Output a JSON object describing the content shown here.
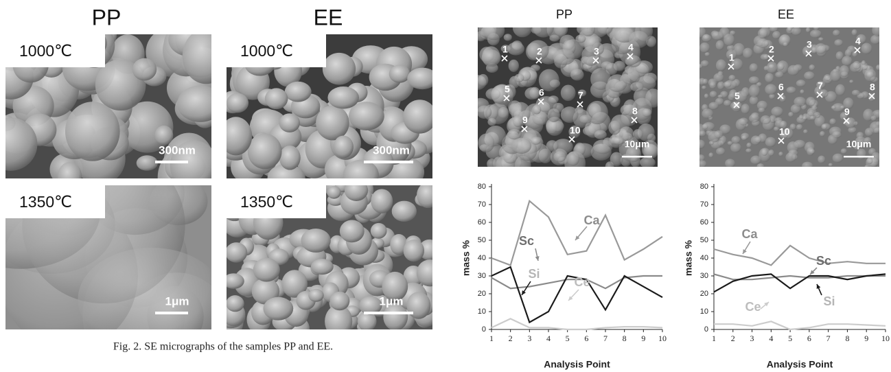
{
  "left": {
    "columns": [
      "PP",
      "EE"
    ],
    "rows": [
      "1000℃",
      "1350℃"
    ],
    "scale_bars": [
      "300nm",
      "300nm",
      "1μm",
      "1μm"
    ],
    "caption": "Fig. 2.    SE micrographs of the samples PP and EE."
  },
  "right": {
    "micrographs": [
      {
        "title": "PP",
        "points": [
          "1",
          "2",
          "3",
          "4",
          "5",
          "6",
          "7",
          "8",
          "9",
          "10"
        ],
        "scale_bar": "10μm"
      },
      {
        "title": "EE",
        "points": [
          "1",
          "2",
          "3",
          "4",
          "5",
          "6",
          "7",
          "8",
          "9",
          "10"
        ],
        "scale_bar": "10μm"
      }
    ]
  },
  "chart_data": [
    {
      "type": "line",
      "y_label": "mass %",
      "x_label": "Analysis Point",
      "x": [
        1,
        2,
        3,
        4,
        5,
        6,
        7,
        8,
        9,
        10
      ],
      "xlim": [
        1,
        10
      ],
      "xticks": [
        1,
        2,
        3,
        4,
        5,
        6,
        7,
        8,
        9,
        10
      ],
      "ylim": [
        0,
        80
      ],
      "yticks": [
        0,
        10,
        20,
        30,
        40,
        50,
        60,
        70,
        80
      ],
      "series": [
        {
          "name": "Ca",
          "color": "#999999",
          "label_color": "#8c8c8c",
          "values": [
            40,
            36,
            72,
            63,
            42,
            44,
            64,
            39,
            45,
            52
          ]
        },
        {
          "name": "Sc",
          "color": "#8a8a8a",
          "label_color": "#6e6e6e",
          "values": [
            29,
            23,
            24,
            26,
            28,
            28,
            23,
            29,
            30,
            30
          ]
        },
        {
          "name": "Si",
          "color": "#1a1a1a",
          "label_color": "#b5b5b5",
          "values": [
            30,
            35,
            4,
            10,
            30,
            28,
            11,
            30,
            24,
            18
          ]
        },
        {
          "name": "Ce",
          "color": "#cccccc",
          "label_color": "#bdbdbd",
          "values": [
            1,
            6,
            1,
            1,
            0,
            0,
            1,
            1.5,
            1.5,
            1
          ]
        }
      ]
    },
    {
      "type": "line",
      "y_label": "mass %",
      "x_label": "Analysis Point",
      "x": [
        1,
        2,
        3,
        4,
        5,
        6,
        7,
        8,
        9,
        10
      ],
      "xlim": [
        1,
        10
      ],
      "xticks": [
        1,
        2,
        3,
        4,
        5,
        6,
        7,
        8,
        9,
        10
      ],
      "ylim": [
        0,
        80
      ],
      "yticks": [
        0,
        10,
        20,
        30,
        40,
        50,
        60,
        70,
        80
      ],
      "series": [
        {
          "name": "Ca",
          "color": "#999999",
          "label_color": "#8c8c8c",
          "values": [
            45,
            42,
            40,
            36,
            47,
            40,
            37,
            38,
            37,
            37
          ]
        },
        {
          "name": "Sc",
          "color": "#8a8a8a",
          "label_color": "#6e6e6e",
          "values": [
            31,
            28,
            28,
            29,
            30,
            29,
            29,
            30,
            30,
            30
          ]
        },
        {
          "name": "Si",
          "color": "#1a1a1a",
          "label_color": "#b5b5b5",
          "values": [
            21,
            27,
            30,
            31,
            23,
            30,
            30,
            28,
            30,
            31
          ]
        },
        {
          "name": "Ce",
          "color": "#cccccc",
          "label_color": "#bdbdbd",
          "values": [
            3,
            3,
            2,
            4.5,
            0,
            1,
            3,
            3,
            2.5,
            2
          ]
        }
      ]
    }
  ]
}
